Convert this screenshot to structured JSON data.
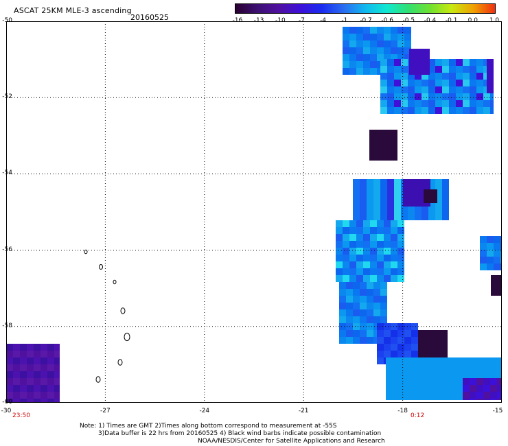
{
  "header": {
    "title": "ASCAT 25KM MLE-3 ascending",
    "date": "20160525"
  },
  "colorbar": {
    "tick_labels": [
      "-16",
      "-13",
      "-10",
      "-7",
      "-4",
      "-1",
      "-0.7",
      "-0.6",
      "-0.5",
      "-0.4",
      "-0.1",
      "0.0",
      "1.0"
    ],
    "colors": [
      "#2a0030",
      "#3c1070",
      "#5010a0",
      "#3c10d8",
      "#1a2cf0",
      "#2a6cf0",
      "#10b8f0",
      "#10e8d0",
      "#30e070",
      "#70e030",
      "#c8e810",
      "#f0a000",
      "#f03010"
    ]
  },
  "map": {
    "x_range": [
      -30,
      -15
    ],
    "y_range": [
      -60,
      -50
    ],
    "x_tick_labels": [
      "-30",
      "-27",
      "-24",
      "-21",
      "-18",
      "-15"
    ],
    "y_tick_labels": [
      "-50",
      "-52",
      "-54",
      "-56",
      "-58",
      "-60"
    ],
    "time_start": "23:50",
    "time_end": "0:12",
    "swath_color": "#1560f0",
    "dark_cell_color": "#2a0a3a"
  },
  "footer": {
    "note1": "Note: 1) Times are GMT 2)Times along bottom correspond to measurement at -55S",
    "note2": "3)Data buffer is 22 hrs from 20160525 4) Black wind barbs indicate possible contamination",
    "credit": "NOAA/NESDIS/Center for Satellite Applications and Research"
  }
}
